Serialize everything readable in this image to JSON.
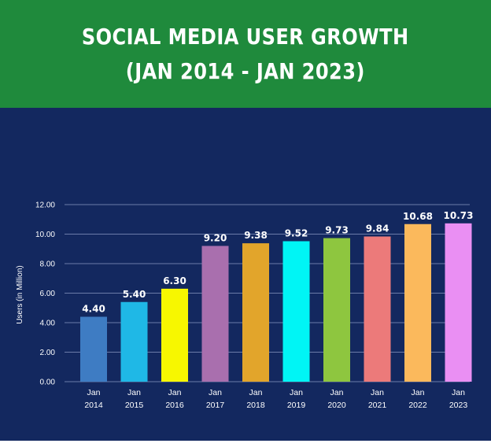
{
  "header": {
    "title_line1": "SOCIAL MEDIA USER GROWTH",
    "title_line2": "(JAN 2014 - JAN 2023)"
  },
  "colors": {
    "header_bg": "#1f8a3c",
    "chart_bg": "#13285f",
    "gridline": "#8a98c2"
  },
  "chart_data": {
    "type": "bar",
    "title": "SOCIAL MEDIA USER GROWTH (JAN 2014 - JAN 2023)",
    "xlabel": "",
    "ylabel": "Users (in Million)",
    "ylim": [
      0,
      12
    ],
    "yticks": [
      "0.00",
      "2.00",
      "4.00",
      "6.00",
      "8.00",
      "10.00",
      "12.00"
    ],
    "grid": true,
    "categories": [
      [
        "Jan",
        "2014"
      ],
      [
        "Jan",
        "2015"
      ],
      [
        "Jan",
        "2016"
      ],
      [
        "Jan",
        "2017"
      ],
      [
        "Jan",
        "2018"
      ],
      [
        "Jan",
        "2019"
      ],
      [
        "Jan",
        "2020"
      ],
      [
        "Jan",
        "2021"
      ],
      [
        "Jan",
        "2022"
      ],
      [
        "Jan",
        "2023"
      ]
    ],
    "values": [
      4.4,
      5.4,
      6.3,
      9.2,
      9.38,
      9.52,
      9.73,
      9.84,
      10.68,
      10.73
    ],
    "value_labels": [
      "4.40",
      "5.40",
      "6.30",
      "9.20",
      "9.38",
      "9.52",
      "9.73",
      "9.84",
      "10.68",
      "10.73"
    ],
    "bar_colors": [
      "#3e7cc3",
      "#1fb8e6",
      "#f7f700",
      "#a96fae",
      "#e2a52b",
      "#00f5f5",
      "#8ec63f",
      "#ec7a7a",
      "#fbb95c",
      "#ea8ff3"
    ]
  }
}
